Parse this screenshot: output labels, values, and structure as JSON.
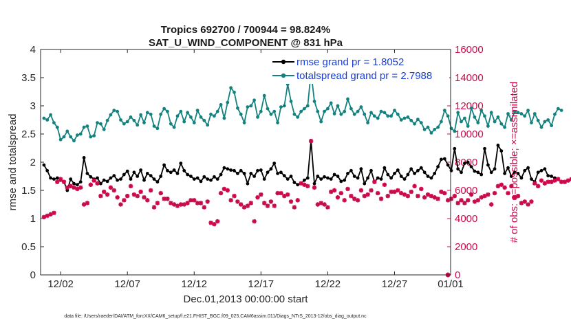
{
  "chart_data": {
    "type": "line",
    "title_line1": "Tropics 692700 / 700944 = 98.824%",
    "title_line2": "SAT_U_WIND_COMPONENT @ 831 hPa",
    "xlabel": "Dec.01,2013 00:00:00 start",
    "ylabel_left": "rmse and totalspread",
    "ylabel_right": "# of obs: o=possible; ×=assimilated",
    "footer": "data file: /Users/raeder/DAI/ATM_forcXX/CAM6_setup/f.e21.FHIST_BGC.f09_025.CAM6assim.011/Diags_NTrS_2013-12/obs_diag_output.nc",
    "xlim": [
      0.5,
      31.2
    ],
    "ylim_left": [
      0,
      4
    ],
    "ylim_right": [
      0,
      16000
    ],
    "x_ticks": [
      {
        "value": 2,
        "label": "12/02"
      },
      {
        "value": 7,
        "label": "12/07"
      },
      {
        "value": 12,
        "label": "12/12"
      },
      {
        "value": 17,
        "label": "12/17"
      },
      {
        "value": 22,
        "label": "12/22"
      },
      {
        "value": 27,
        "label": "12/27"
      },
      {
        "value": 32,
        "label": "01/01"
      }
    ],
    "y_ticks_left": [
      "0",
      "0.5",
      "1",
      "1.5",
      "2",
      "2.5",
      "3",
      "3.5",
      "4"
    ],
    "y_ticks_right": [
      "0",
      "2000",
      "4000",
      "6000",
      "8000",
      "10000",
      "12000",
      "14000",
      "16000"
    ],
    "x_start": 0.75,
    "x_step": 0.25,
    "series": [
      {
        "name": "rmse grand pr = 1.8052",
        "color": "#000000",
        "axis": "left",
        "values": [
          1.95,
          1.85,
          1.72,
          1.7,
          1.72,
          1.68,
          1.65,
          1.5,
          1.7,
          1.62,
          1.6,
          1.65,
          2.08,
          1.8,
          1.74,
          1.7,
          1.72,
          1.62,
          1.68,
          1.66,
          1.72,
          1.76,
          1.68,
          1.7,
          1.78,
          1.84,
          1.7,
          1.82,
          1.75,
          1.86,
          1.68,
          1.8,
          1.76,
          1.7,
          1.65,
          1.75,
          1.95,
          1.85,
          1.82,
          1.86,
          1.8,
          1.98,
          1.85,
          1.78,
          1.75,
          1.7,
          1.72,
          1.66,
          1.74,
          1.7,
          1.68,
          1.74,
          1.7,
          1.78,
          1.9,
          1.88,
          1.86,
          1.85,
          1.8,
          1.85,
          1.8,
          1.62,
          1.8,
          1.75,
          1.85,
          1.86,
          1.7,
          1.82,
          1.88,
          1.98,
          1.8,
          1.82,
          1.76,
          1.7,
          1.75,
          1.64,
          1.6,
          1.62,
          1.68,
          1.72,
          2.38,
          1.62,
          1.75,
          1.7,
          1.74,
          1.72,
          1.7,
          1.78,
          1.75,
          1.66,
          1.68,
          1.8,
          1.85,
          1.75,
          1.72,
          1.88,
          1.62,
          1.72,
          1.85,
          1.65,
          1.72,
          1.7,
          1.9,
          1.78,
          1.72,
          1.8,
          1.86,
          1.75,
          1.7,
          1.78,
          1.88,
          1.8,
          1.85,
          1.9,
          1.82,
          1.75,
          1.72,
          1.8,
          1.92,
          2.05,
          2.06,
          1.95,
          1.85,
          2.24,
          1.88,
          1.82,
          1.98,
          2.0,
          1.92,
          1.84,
          1.82,
          1.78,
          2.24,
          1.95,
          1.82,
          1.88,
          2.3,
          2.2,
          1.8,
          1.9,
          1.75,
          1.82,
          1.8,
          1.72,
          1.85,
          1.9,
          1.7,
          1.65,
          1.82,
          1.85,
          1.88,
          1.76,
          1.75,
          1.72
        ]
      },
      {
        "name": "totalspread grand pr = 2.7988",
        "color": "#13827f",
        "axis": "left",
        "values": [
          2.78,
          2.75,
          2.84,
          2.7,
          2.62,
          2.4,
          2.45,
          2.55,
          2.45,
          2.38,
          2.48,
          2.5,
          2.62,
          2.64,
          2.45,
          2.47,
          2.7,
          2.68,
          2.58,
          2.74,
          2.84,
          2.92,
          2.9,
          2.75,
          2.68,
          2.72,
          2.8,
          2.74,
          2.66,
          2.84,
          2.7,
          2.88,
          2.85,
          2.64,
          2.6,
          2.85,
          2.95,
          2.9,
          2.68,
          2.62,
          2.82,
          2.9,
          2.72,
          2.88,
          2.8,
          2.7,
          2.92,
          2.8,
          2.74,
          2.66,
          2.85,
          2.82,
          2.9,
          3.02,
          2.78,
          3.06,
          3.32,
          3.24,
          2.96,
          2.85,
          2.7,
          2.98,
          3.0,
          3.1,
          2.8,
          2.9,
          3.18,
          2.95,
          2.85,
          2.9,
          2.7,
          2.98,
          3.0,
          3.38,
          3.08,
          2.85,
          2.8,
          2.9,
          2.95,
          3.0,
          3.6,
          3.08,
          2.9,
          2.72,
          2.9,
          2.95,
          3.05,
          2.86,
          3.0,
          2.85,
          2.9,
          3.12,
          2.95,
          2.85,
          2.9,
          2.98,
          2.85,
          2.7,
          2.88,
          2.82,
          2.78,
          2.9,
          2.88,
          2.82,
          2.82,
          2.92,
          2.85,
          2.75,
          2.78,
          2.8,
          2.74,
          2.68,
          2.76,
          2.7,
          2.58,
          2.62,
          2.52,
          2.58,
          2.62,
          2.72,
          2.92,
          2.82,
          2.6,
          2.55,
          2.88,
          2.72,
          2.78,
          2.64,
          2.96,
          2.8,
          2.7,
          2.92,
          2.82,
          2.64,
          2.88,
          2.72,
          2.8,
          2.68,
          2.62,
          2.86,
          2.75,
          2.9,
          2.88,
          2.86,
          2.82,
          2.92,
          2.7,
          2.86,
          2.74,
          2.62,
          2.72,
          2.75,
          2.65,
          2.85,
          2.95,
          2.92
        ]
      },
      {
        "name": "# of obs assimilated",
        "color": "#cc0a4a",
        "axis": "right",
        "marker": "asterisk",
        "values": [
          4100,
          4200,
          4300,
          4400,
          6600,
          6800,
          6600,
          6200,
          6300,
          6200,
          6100,
          6200,
          5000,
          5100,
          6400,
          6700,
          6500,
          5600,
          5900,
          5700,
          6200,
          6000,
          5500,
          5000,
          5300,
          5600,
          6300,
          5700,
          5600,
          5900,
          5500,
          5300,
          6000,
          4800,
          5100,
          5800,
          5400,
          5400,
          5100,
          5000,
          4900,
          5000,
          5000,
          5100,
          5300,
          5300,
          5100,
          5100,
          4800,
          5200,
          3700,
          3600,
          3800,
          5800,
          6100,
          6000,
          5300,
          5600,
          5200,
          5000,
          4800,
          4900,
          5100,
          3800,
          5500,
          5700,
          5100,
          4900,
          5200,
          4900,
          5800,
          5800,
          5600,
          5700,
          5200,
          4800,
          5300,
          6500,
          6400,
          6300,
          9500,
          6200,
          5000,
          5100,
          5000,
          4800,
          5900,
          6000,
          5500,
          5800,
          5300,
          6100,
          5600,
          5400,
          5300,
          6000,
          5600,
          5700,
          6000,
          6600,
          5800,
          5400,
          6400,
          5600,
          5900,
          5900,
          6000,
          5800,
          5700,
          5600,
          5900,
          6300,
          5600,
          6100,
          5500,
          5700,
          5600,
          5500,
          5400,
          5900,
          5800,
          5300,
          5400,
          5600,
          5100,
          5300,
          5100,
          5300,
          5700,
          5200,
          5300,
          5500,
          5600,
          5700,
          5000,
          5800,
          6300,
          6400,
          6200,
          5800,
          6300,
          5500,
          5600,
          5100,
          5200,
          5000,
          5200,
          6500,
          6300,
          6700,
          6500,
          6600,
          6600,
          6700,
          6800,
          6600,
          6600,
          6700,
          6800
        ]
      }
    ],
    "extra_points": [
      {
        "x": 31.0,
        "y": 0,
        "axis": "right",
        "label": "o"
      }
    ]
  }
}
